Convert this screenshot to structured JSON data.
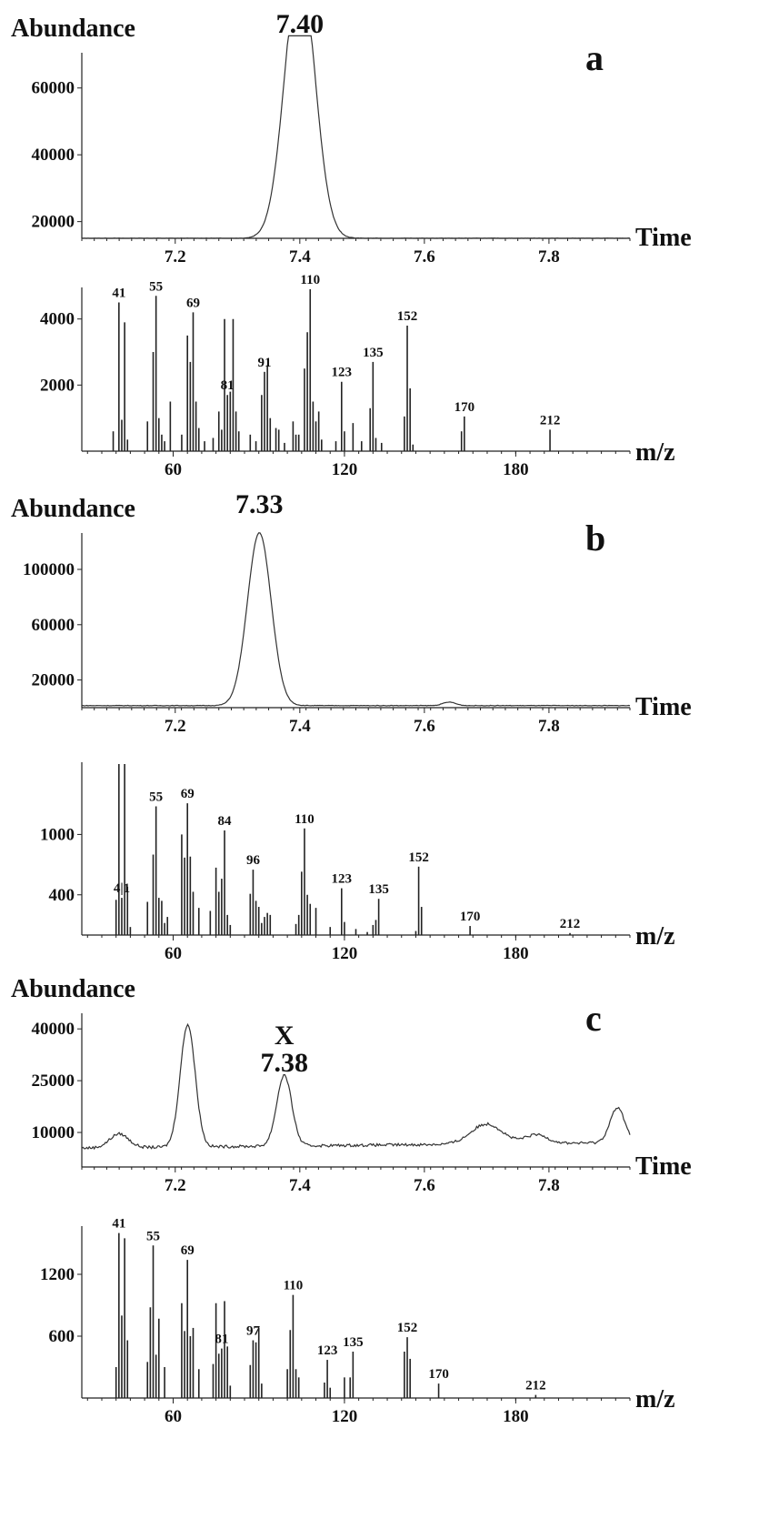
{
  "panels": [
    {
      "letter": "a",
      "abundance_label": "Abundance",
      "time_label": "Time",
      "mz_label": "m/z",
      "peak_label": "7.40",
      "chromatogram": {
        "type": "line",
        "xlim": [
          7.05,
          7.93
        ],
        "ylim": [
          15000,
          70000
        ],
        "ytick_labels": [
          "20000",
          "40000",
          "60000"
        ],
        "yticks": [
          20000,
          40000,
          60000
        ],
        "xtick_labels": [
          "7.2",
          "7.4",
          "7.6",
          "7.8"
        ],
        "xticks": [
          7.2,
          7.4,
          7.6,
          7.8
        ],
        "peaks": [
          {
            "rt": 7.4,
            "height": 82000,
            "width": 0.024
          }
        ],
        "baseline": 15000
      },
      "spectrum": {
        "type": "bar",
        "xlim": [
          28,
          220
        ],
        "ylim": [
          0,
          4900
        ],
        "ytick_labels": [
          "2000",
          "4000"
        ],
        "yticks": [
          2000,
          4000
        ],
        "xtick_labels": [
          "60",
          "120",
          "180"
        ],
        "xticks": [
          60,
          120,
          180
        ],
        "peaks": [
          [
            39,
            600
          ],
          [
            41,
            4500
          ],
          [
            42,
            950
          ],
          [
            43,
            3900
          ],
          [
            44,
            350
          ],
          [
            51,
            900
          ],
          [
            53,
            3000
          ],
          [
            54,
            4700
          ],
          [
            55,
            1000
          ],
          [
            56,
            500
          ],
          [
            57,
            300
          ],
          [
            59,
            1500
          ],
          [
            63,
            500
          ],
          [
            65,
            3500
          ],
          [
            66,
            2700
          ],
          [
            67,
            4200
          ],
          [
            68,
            1500
          ],
          [
            69,
            700
          ],
          [
            71,
            300
          ],
          [
            74,
            400
          ],
          [
            76,
            1200
          ],
          [
            77,
            650
          ],
          [
            78,
            4000
          ],
          [
            79,
            1700
          ],
          [
            80,
            1800
          ],
          [
            81,
            4000
          ],
          [
            82,
            1200
          ],
          [
            83,
            600
          ],
          [
            87,
            500
          ],
          [
            89,
            300
          ],
          [
            91,
            1700
          ],
          [
            92,
            2400
          ],
          [
            93,
            2600
          ],
          [
            94,
            1000
          ],
          [
            96,
            700
          ],
          [
            97,
            650
          ],
          [
            99,
            250
          ],
          [
            102,
            900
          ],
          [
            103,
            500
          ],
          [
            104,
            500
          ],
          [
            106,
            2500
          ],
          [
            107,
            3600
          ],
          [
            108,
            4900
          ],
          [
            109,
            1500
          ],
          [
            110,
            900
          ],
          [
            111,
            1200
          ],
          [
            112,
            350
          ],
          [
            117,
            300
          ],
          [
            119,
            2100
          ],
          [
            120,
            600
          ],
          [
            123,
            850
          ],
          [
            126,
            300
          ],
          [
            129,
            1300
          ],
          [
            130,
            2700
          ],
          [
            131,
            400
          ],
          [
            133,
            250
          ],
          [
            141,
            1050
          ],
          [
            142,
            3800
          ],
          [
            143,
            1900
          ],
          [
            144,
            200
          ],
          [
            161,
            600
          ],
          [
            162,
            1050
          ],
          [
            192,
            650
          ]
        ],
        "labels": [
          [
            41,
            "41"
          ],
          [
            54,
            "55"
          ],
          [
            67,
            "69"
          ],
          [
            79,
            "81"
          ],
          [
            92,
            "91"
          ],
          [
            108,
            "110"
          ],
          [
            119,
            "123"
          ],
          [
            130,
            "135"
          ],
          [
            142,
            "152"
          ],
          [
            162,
            "170"
          ],
          [
            192,
            "212"
          ]
        ]
      }
    },
    {
      "letter": "b",
      "abundance_label": "Abundance",
      "time_label": "Time",
      "mz_label": "m/z",
      "peak_label": "7.33",
      "chromatogram": {
        "type": "line",
        "xlim": [
          7.05,
          7.93
        ],
        "ylim": [
          0,
          125000
        ],
        "ytick_labels": [
          "20000",
          "60000",
          "100000"
        ],
        "yticks": [
          20000,
          60000,
          100000
        ],
        "xtick_labels": [
          "7.2",
          "7.4",
          "7.6",
          "7.8"
        ],
        "xticks": [
          7.2,
          7.4,
          7.6,
          7.8
        ],
        "peaks": [
          {
            "rt": 7.335,
            "height": 125000,
            "width": 0.019
          },
          {
            "rt": 7.64,
            "height": 2500,
            "width": 0.01
          }
        ],
        "baseline": 1500
      },
      "spectrum": {
        "type": "bar",
        "xlim": [
          28,
          220
        ],
        "ylim": [
          0,
          1700
        ],
        "ytick_labels": [
          "400",
          "1000"
        ],
        "yticks": [
          400,
          1000
        ],
        "xtick_labels": [
          "60",
          "120",
          "180"
        ],
        "xticks": [
          60,
          120,
          180
        ],
        "peaks": [
          [
            40,
            350
          ],
          [
            41,
            1700
          ],
          [
            42,
            370
          ],
          [
            43,
            1700
          ],
          [
            44,
            480
          ],
          [
            45,
            80
          ],
          [
            51,
            330
          ],
          [
            53,
            800
          ],
          [
            54,
            1280
          ],
          [
            55,
            370
          ],
          [
            56,
            340
          ],
          [
            57,
            120
          ],
          [
            58,
            180
          ],
          [
            63,
            1000
          ],
          [
            64,
            770
          ],
          [
            65,
            1310
          ],
          [
            66,
            780
          ],
          [
            67,
            430
          ],
          [
            69,
            270
          ],
          [
            73,
            240
          ],
          [
            75,
            670
          ],
          [
            76,
            430
          ],
          [
            77,
            560
          ],
          [
            78,
            1040
          ],
          [
            79,
            200
          ],
          [
            80,
            100
          ],
          [
            87,
            410
          ],
          [
            88,
            650
          ],
          [
            89,
            340
          ],
          [
            90,
            280
          ],
          [
            91,
            120
          ],
          [
            92,
            180
          ],
          [
            93,
            220
          ],
          [
            94,
            200
          ],
          [
            103,
            110
          ],
          [
            104,
            200
          ],
          [
            105,
            630
          ],
          [
            106,
            1060
          ],
          [
            107,
            400
          ],
          [
            108,
            310
          ],
          [
            110,
            270
          ],
          [
            115,
            80
          ],
          [
            119,
            465
          ],
          [
            120,
            130
          ],
          [
            124,
            60
          ],
          [
            128,
            30
          ],
          [
            130,
            100
          ],
          [
            131,
            150
          ],
          [
            132,
            360
          ],
          [
            145,
            40
          ],
          [
            146,
            680
          ],
          [
            147,
            280
          ],
          [
            164,
            90
          ],
          [
            199,
            20
          ]
        ],
        "labels": [
          [
            42,
            "4|1"
          ],
          [
            54,
            "55"
          ],
          [
            65,
            "69"
          ],
          [
            78,
            "84"
          ],
          [
            88,
            "96"
          ],
          [
            106,
            "110"
          ],
          [
            119,
            "123"
          ],
          [
            132,
            "135"
          ],
          [
            146,
            "152"
          ],
          [
            164,
            "170"
          ],
          [
            199,
            "212"
          ]
        ]
      }
    },
    {
      "letter": "c",
      "abundance_label": "Abundance",
      "time_label": "Time",
      "mz_label": "m/z",
      "peak_label": "7.38",
      "peak_extra_label": "X",
      "chromatogram": {
        "type": "line",
        "xlim": [
          7.05,
          7.93
        ],
        "ylim": [
          0,
          44000
        ],
        "ytick_labels": [
          "10000",
          "25000",
          "40000"
        ],
        "yticks": [
          10000,
          25000,
          40000
        ],
        "xtick_labels": [
          "7.2",
          "7.4",
          "7.6",
          "7.8"
        ],
        "xticks": [
          7.2,
          7.4,
          7.6,
          7.8
        ],
        "peaks": [
          {
            "rt": 7.11,
            "height": 4000,
            "width": 0.015
          },
          {
            "rt": 7.22,
            "height": 35500,
            "width": 0.012
          },
          {
            "rt": 7.375,
            "height": 20500,
            "width": 0.012
          },
          {
            "rt": 7.7,
            "height": 5800,
            "width": 0.025
          },
          {
            "rt": 7.78,
            "height": 2500,
            "width": 0.018
          },
          {
            "rt": 7.91,
            "height": 10000,
            "width": 0.012
          }
        ],
        "baseline": 5500
      },
      "spectrum": {
        "type": "bar",
        "xlim": [
          28,
          220
        ],
        "ylim": [
          0,
          1650
        ],
        "ytick_labels": [
          "600",
          "1200"
        ],
        "yticks": [
          600,
          1200
        ],
        "xtick_labels": [
          "60",
          "120",
          "180"
        ],
        "xticks": [
          60,
          120,
          180
        ],
        "peaks": [
          [
            40,
            300
          ],
          [
            41,
            1600
          ],
          [
            42,
            800
          ],
          [
            43,
            1550
          ],
          [
            44,
            560
          ],
          [
            51,
            350
          ],
          [
            52,
            880
          ],
          [
            53,
            1480
          ],
          [
            54,
            420
          ],
          [
            55,
            770
          ],
          [
            57,
            300
          ],
          [
            63,
            920
          ],
          [
            64,
            650
          ],
          [
            65,
            1340
          ],
          [
            66,
            600
          ],
          [
            67,
            680
          ],
          [
            69,
            280
          ],
          [
            74,
            330
          ],
          [
            75,
            920
          ],
          [
            76,
            430
          ],
          [
            77,
            480
          ],
          [
            78,
            940
          ],
          [
            79,
            500
          ],
          [
            80,
            120
          ],
          [
            87,
            320
          ],
          [
            88,
            560
          ],
          [
            89,
            540
          ],
          [
            90,
            680
          ],
          [
            91,
            140
          ],
          [
            100,
            280
          ],
          [
            101,
            660
          ],
          [
            102,
            1000
          ],
          [
            103,
            280
          ],
          [
            104,
            200
          ],
          [
            113,
            150
          ],
          [
            114,
            370
          ],
          [
            115,
            100
          ],
          [
            120,
            200
          ],
          [
            122,
            200
          ],
          [
            123,
            450
          ],
          [
            141,
            450
          ],
          [
            142,
            590
          ],
          [
            143,
            380
          ],
          [
            153,
            140
          ],
          [
            187,
            30
          ]
        ],
        "labels": [
          [
            41,
            "41"
          ],
          [
            53,
            "55"
          ],
          [
            65,
            "69"
          ],
          [
            77,
            "81"
          ],
          [
            88,
            "97"
          ],
          [
            102,
            "110"
          ],
          [
            114,
            "123"
          ],
          [
            123,
            "135"
          ],
          [
            142,
            "152"
          ],
          [
            153,
            "170"
          ],
          [
            187,
            "212"
          ]
        ]
      }
    }
  ]
}
